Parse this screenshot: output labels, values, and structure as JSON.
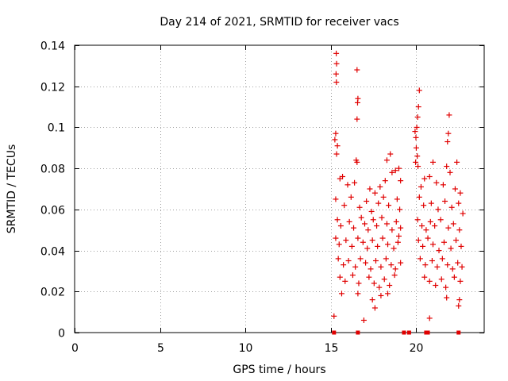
{
  "chart_data": {
    "type": "scatter",
    "title": "Day 214 of 2021, SRMTID for receiver vacs",
    "xlabel": "GPS time / hours",
    "ylabel": "SRMTID / TECUs",
    "xlim": [
      0,
      24
    ],
    "ylim": [
      0,
      0.14
    ],
    "xticks": [
      0,
      5,
      10,
      15,
      20
    ],
    "xtick_labels": [
      "0",
      "5",
      "10",
      "15",
      "20"
    ],
    "yticks": [
      0,
      0.02,
      0.04,
      0.06,
      0.08,
      0.1,
      0.12,
      0.14
    ],
    "ytick_labels": [
      "0",
      "0.02",
      "0.04",
      "0.06",
      "0.08",
      "0.1",
      "0.12",
      "0.14"
    ],
    "grid": true,
    "marker": "+",
    "color": "#e00000",
    "data_time_range_hours": [
      15.2,
      22.8
    ],
    "zero_value_marks_x": [
      15.2,
      16.6,
      19.3,
      19.6,
      20.6,
      20.7,
      22.5
    ],
    "series": [
      {
        "name": "SRMTID",
        "points": [
          [
            15.33,
            0.136
          ],
          [
            15.35,
            0.131
          ],
          [
            15.32,
            0.126
          ],
          [
            15.34,
            0.122
          ],
          [
            16.55,
            0.128
          ],
          [
            16.6,
            0.114
          ],
          [
            16.58,
            0.112
          ],
          [
            16.55,
            0.104
          ],
          [
            20.2,
            0.118
          ],
          [
            20.15,
            0.11
          ],
          [
            20.1,
            0.105
          ],
          [
            20.05,
            0.1
          ],
          [
            21.95,
            0.106
          ],
          [
            21.9,
            0.097
          ],
          [
            21.85,
            0.093
          ],
          [
            15.3,
            0.097
          ],
          [
            15.25,
            0.094
          ],
          [
            15.4,
            0.091
          ],
          [
            15.35,
            0.087
          ],
          [
            16.5,
            0.084
          ],
          [
            18.5,
            0.087
          ],
          [
            18.3,
            0.084
          ],
          [
            19.95,
            0.098
          ],
          [
            20.0,
            0.095
          ],
          [
            20.02,
            0.09
          ],
          [
            20.08,
            0.086
          ],
          [
            19.98,
            0.083
          ],
          [
            20.12,
            0.081
          ],
          [
            22.4,
            0.083
          ],
          [
            21.8,
            0.081
          ],
          [
            21.0,
            0.083
          ],
          [
            16.55,
            0.083
          ],
          [
            15.2,
            0.008
          ],
          [
            15.55,
            0.075
          ],
          [
            15.7,
            0.076
          ],
          [
            16.0,
            0.072
          ],
          [
            16.4,
            0.073
          ],
          [
            17.3,
            0.07
          ],
          [
            17.6,
            0.068
          ],
          [
            17.9,
            0.071
          ],
          [
            18.2,
            0.074
          ],
          [
            18.6,
            0.078
          ],
          [
            18.8,
            0.079
          ],
          [
            19.0,
            0.08
          ],
          [
            19.1,
            0.074
          ],
          [
            20.3,
            0.071
          ],
          [
            20.5,
            0.075
          ],
          [
            20.8,
            0.076
          ],
          [
            21.2,
            0.073
          ],
          [
            21.6,
            0.072
          ],
          [
            22.0,
            0.078
          ],
          [
            22.3,
            0.07
          ],
          [
            22.6,
            0.068
          ],
          [
            15.3,
            0.065
          ],
          [
            15.8,
            0.062
          ],
          [
            16.2,
            0.066
          ],
          [
            16.7,
            0.061
          ],
          [
            17.1,
            0.064
          ],
          [
            17.4,
            0.059
          ],
          [
            17.8,
            0.063
          ],
          [
            18.1,
            0.066
          ],
          [
            18.4,
            0.062
          ],
          [
            18.9,
            0.065
          ],
          [
            19.05,
            0.06
          ],
          [
            20.2,
            0.066
          ],
          [
            20.45,
            0.062
          ],
          [
            20.9,
            0.063
          ],
          [
            21.3,
            0.06
          ],
          [
            21.7,
            0.064
          ],
          [
            22.1,
            0.061
          ],
          [
            22.5,
            0.063
          ],
          [
            22.75,
            0.058
          ],
          [
            15.4,
            0.055
          ],
          [
            15.6,
            0.052
          ],
          [
            16.1,
            0.054
          ],
          [
            16.35,
            0.051
          ],
          [
            16.8,
            0.056
          ],
          [
            17.0,
            0.053
          ],
          [
            17.2,
            0.05
          ],
          [
            17.5,
            0.055
          ],
          [
            17.7,
            0.052
          ],
          [
            18.0,
            0.056
          ],
          [
            18.3,
            0.053
          ],
          [
            18.6,
            0.05
          ],
          [
            18.85,
            0.054
          ],
          [
            19.1,
            0.051
          ],
          [
            20.1,
            0.055
          ],
          [
            20.35,
            0.052
          ],
          [
            20.6,
            0.05
          ],
          [
            20.85,
            0.054
          ],
          [
            21.1,
            0.052
          ],
          [
            21.45,
            0.055
          ],
          [
            21.9,
            0.051
          ],
          [
            22.2,
            0.053
          ],
          [
            22.55,
            0.05
          ],
          [
            15.3,
            0.046
          ],
          [
            15.5,
            0.043
          ],
          [
            15.9,
            0.045
          ],
          [
            16.25,
            0.042
          ],
          [
            16.6,
            0.046
          ],
          [
            16.9,
            0.044
          ],
          [
            17.15,
            0.041
          ],
          [
            17.45,
            0.045
          ],
          [
            17.75,
            0.042
          ],
          [
            18.05,
            0.046
          ],
          [
            18.35,
            0.043
          ],
          [
            18.7,
            0.041
          ],
          [
            18.95,
            0.044
          ],
          [
            19.0,
            0.047
          ],
          [
            20.15,
            0.045
          ],
          [
            20.4,
            0.042
          ],
          [
            20.7,
            0.046
          ],
          [
            21.0,
            0.043
          ],
          [
            21.35,
            0.04
          ],
          [
            21.65,
            0.044
          ],
          [
            22.05,
            0.041
          ],
          [
            22.35,
            0.045
          ],
          [
            22.65,
            0.042
          ],
          [
            15.45,
            0.036
          ],
          [
            15.75,
            0.033
          ],
          [
            16.05,
            0.035
          ],
          [
            16.45,
            0.032
          ],
          [
            16.75,
            0.036
          ],
          [
            17.05,
            0.034
          ],
          [
            17.35,
            0.031
          ],
          [
            17.65,
            0.035
          ],
          [
            17.95,
            0.032
          ],
          [
            18.25,
            0.036
          ],
          [
            18.55,
            0.033
          ],
          [
            18.8,
            0.031
          ],
          [
            19.1,
            0.034
          ],
          [
            20.25,
            0.036
          ],
          [
            20.55,
            0.033
          ],
          [
            20.95,
            0.035
          ],
          [
            21.25,
            0.032
          ],
          [
            21.55,
            0.036
          ],
          [
            21.85,
            0.033
          ],
          [
            22.15,
            0.031
          ],
          [
            22.45,
            0.034
          ],
          [
            22.7,
            0.032
          ],
          [
            15.55,
            0.027
          ],
          [
            15.85,
            0.025
          ],
          [
            16.3,
            0.028
          ],
          [
            16.65,
            0.024
          ],
          [
            17.25,
            0.027
          ],
          [
            17.55,
            0.024
          ],
          [
            17.85,
            0.022
          ],
          [
            18.15,
            0.026
          ],
          [
            18.45,
            0.023
          ],
          [
            18.75,
            0.028
          ],
          [
            20.5,
            0.027
          ],
          [
            20.8,
            0.025
          ],
          [
            21.15,
            0.023
          ],
          [
            21.5,
            0.026
          ],
          [
            21.75,
            0.022
          ],
          [
            22.25,
            0.027
          ],
          [
            22.6,
            0.025
          ],
          [
            15.65,
            0.019
          ],
          [
            16.6,
            0.019
          ],
          [
            17.45,
            0.016
          ],
          [
            17.6,
            0.012
          ],
          [
            17.95,
            0.018
          ],
          [
            18.35,
            0.019
          ],
          [
            21.8,
            0.017
          ],
          [
            22.5,
            0.013
          ],
          [
            22.55,
            0.016
          ],
          [
            16.95,
            0.006
          ],
          [
            20.8,
            0.007
          ]
        ]
      }
    ]
  }
}
